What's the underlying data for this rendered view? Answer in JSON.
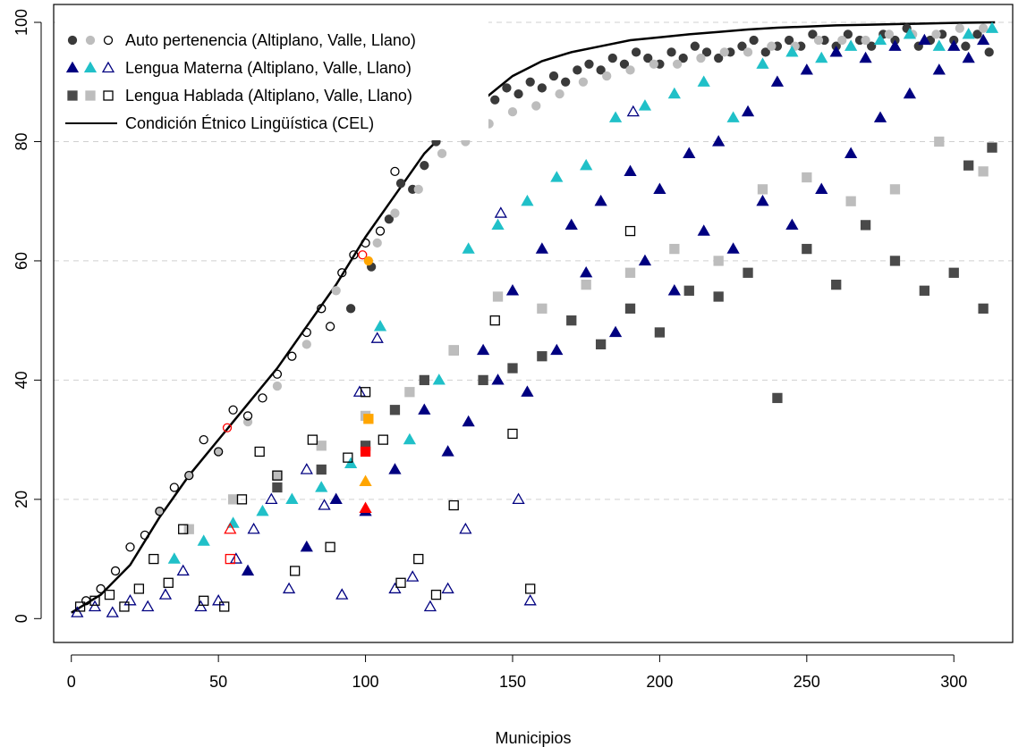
{
  "chart_data": {
    "type": "scatter",
    "title": "",
    "xlabel": "Municipios",
    "ylabel": "",
    "xlim": [
      -6,
      320
    ],
    "ylim": [
      -4,
      103
    ],
    "xticks": [
      0,
      50,
      100,
      150,
      200,
      250,
      300
    ],
    "yticks": [
      0,
      20,
      40,
      60,
      80,
      100
    ],
    "grid": "horizontal dashed at y ticks",
    "legend_position": "top-left",
    "colors": {
      "altiplano_circle": "#3a3a3a",
      "valle_circle": "#bdbdbd",
      "llano_circle": "#000000",
      "altiplano_triangle": "#000080",
      "valle_triangle": "#20c0c8",
      "llano_triangle": "#000080",
      "altiplano_square": "#4a4a4a",
      "valle_square": "#bdbdbd",
      "llano_square": "#000000",
      "cel_line": "#000000",
      "highlight_red": "#ff0000",
      "highlight_orange": "#ffa500"
    },
    "legend": [
      {
        "label": "Auto pertenencia (Altiplano, Valle, Llano)",
        "marker": "circle"
      },
      {
        "label": "Lengua Materna (Altiplano, Valle, Llano)",
        "marker": "triangle"
      },
      {
        "label": "Lengua Hablada (Altiplano, Valle, Llano)",
        "marker": "square"
      },
      {
        "label": "Condición Étnico Lingüística (CEL)",
        "marker": "line"
      }
    ],
    "cel_line": {
      "x": [
        0,
        10,
        20,
        25,
        30,
        40,
        50,
        60,
        70,
        80,
        90,
        100,
        110,
        120,
        130,
        140,
        150,
        160,
        170,
        180,
        190,
        200,
        210,
        220,
        230,
        240,
        250,
        260,
        270,
        280,
        290,
        300,
        314
      ],
      "y": [
        1,
        4,
        9,
        13,
        17,
        24,
        30,
        36,
        42,
        49,
        56,
        64,
        71,
        78,
        83,
        87,
        91,
        93.5,
        95,
        96,
        97,
        97.5,
        98,
        98.4,
        98.8,
        99.1,
        99.3,
        99.5,
        99.6,
        99.7,
        99.8,
        99.9,
        100
      ]
    },
    "series": [
      {
        "group": "Auto pertenencia",
        "region": "Altiplano",
        "marker": "circle-filled",
        "color": "#3a3a3a",
        "x": [
          95,
          102,
          108,
          112,
          116,
          120,
          124,
          128,
          132,
          136,
          140,
          144,
          148,
          152,
          156,
          160,
          164,
          168,
          172,
          176,
          180,
          184,
          188,
          192,
          196,
          200,
          204,
          208,
          212,
          216,
          220,
          224,
          228,
          232,
          236,
          240,
          244,
          248,
          252,
          256,
          260,
          264,
          268,
          272,
          276,
          280,
          284,
          288,
          292,
          296,
          300,
          304,
          308,
          312
        ],
        "y": [
          52,
          59,
          67,
          73,
          72,
          76,
          80,
          82,
          85,
          84,
          86,
          87,
          89,
          88,
          90,
          89,
          91,
          90,
          92,
          93,
          92,
          94,
          93,
          95,
          94,
          93,
          95,
          94,
          96,
          95,
          94,
          95,
          96,
          97,
          95,
          96,
          97,
          96,
          98,
          97,
          96,
          98,
          97,
          96,
          98,
          97,
          99,
          96,
          97,
          98,
          97,
          96,
          98,
          95
        ]
      },
      {
        "group": "Auto pertenencia",
        "region": "Valle",
        "marker": "circle-filled",
        "color": "#bdbdbd",
        "x": [
          30,
          40,
          50,
          60,
          70,
          80,
          90,
          104,
          110,
          118,
          126,
          134,
          142,
          150,
          158,
          166,
          174,
          182,
          190,
          198,
          206,
          214,
          222,
          230,
          238,
          246,
          254,
          262,
          270,
          278,
          286,
          294,
          302,
          310
        ],
        "y": [
          18,
          24,
          28,
          33,
          39,
          46,
          55,
          63,
          68,
          72,
          78,
          80,
          83,
          85,
          86,
          88,
          90,
          91,
          92,
          93,
          93,
          94,
          95,
          95,
          96,
          96,
          97,
          97,
          97,
          98,
          98,
          98,
          99,
          99
        ]
      },
      {
        "group": "Auto pertenencia",
        "region": "Llano",
        "marker": "circle-open",
        "color": "#000000",
        "x": [
          5,
          10,
          15,
          20,
          25,
          30,
          35,
          40,
          45,
          50,
          55,
          60,
          65,
          70,
          75,
          80,
          85,
          88,
          92,
          96,
          100,
          105,
          110
        ],
        "y": [
          3,
          5,
          8,
          12,
          14,
          18,
          22,
          24,
          30,
          28,
          35,
          34,
          37,
          41,
          44,
          48,
          52,
          49,
          58,
          61,
          63,
          65,
          75
        ]
      },
      {
        "group": "Lengua Materna",
        "region": "Altiplano",
        "marker": "triangle-filled",
        "color": "#000080",
        "x": [
          60,
          80,
          90,
          100,
          110,
          120,
          128,
          135,
          140,
          145,
          150,
          155,
          160,
          165,
          170,
          175,
          180,
          185,
          190,
          195,
          200,
          205,
          210,
          215,
          220,
          225,
          230,
          235,
          240,
          245,
          250,
          255,
          260,
          265,
          270,
          275,
          280,
          285,
          290,
          295,
          300,
          305,
          310
        ],
        "y": [
          8,
          12,
          20,
          18,
          25,
          35,
          28,
          33,
          45,
          40,
          55,
          38,
          62,
          45,
          66,
          58,
          70,
          48,
          75,
          60,
          72,
          55,
          78,
          65,
          80,
          62,
          85,
          70,
          90,
          66,
          92,
          72,
          95,
          78,
          94,
          84,
          96,
          88,
          97,
          92,
          96,
          94,
          97
        ]
      },
      {
        "group": "Lengua Materna",
        "region": "Valle",
        "marker": "triangle-filled",
        "color": "#20c0c8",
        "x": [
          35,
          45,
          55,
          65,
          75,
          85,
          95,
          105,
          115,
          125,
          135,
          145,
          155,
          165,
          175,
          185,
          195,
          205,
          215,
          225,
          235,
          245,
          255,
          265,
          275,
          285,
          295,
          305,
          313
        ],
        "y": [
          10,
          13,
          16,
          18,
          20,
          22,
          26,
          49,
          30,
          40,
          62,
          66,
          70,
          74,
          76,
          84,
          86,
          88,
          90,
          84,
          93,
          95,
          94,
          96,
          97,
          98,
          96,
          98,
          99
        ]
      },
      {
        "group": "Lengua Materna",
        "region": "Llano",
        "marker": "triangle-open",
        "color": "#000080",
        "x": [
          2,
          8,
          14,
          20,
          26,
          32,
          38,
          44,
          50,
          56,
          62,
          68,
          74,
          80,
          86,
          92,
          98,
          104,
          110,
          116,
          122,
          128,
          134,
          146,
          152,
          156,
          191
        ],
        "y": [
          1,
          2,
          1,
          3,
          2,
          4,
          8,
          2,
          3,
          10,
          15,
          20,
          5,
          25,
          19,
          4,
          38,
          47,
          5,
          7,
          2,
          5,
          15,
          68,
          20,
          3,
          85
        ]
      },
      {
        "group": "Lengua Hablada",
        "region": "Altiplano",
        "marker": "square-filled",
        "color": "#4a4a4a",
        "x": [
          70,
          85,
          100,
          110,
          120,
          130,
          140,
          150,
          160,
          170,
          180,
          190,
          200,
          210,
          220,
          230,
          240,
          250,
          260,
          270,
          280,
          290,
          300,
          305,
          310,
          313
        ],
        "y": [
          22,
          25,
          29,
          35,
          40,
          45,
          40,
          42,
          44,
          50,
          46,
          52,
          48,
          55,
          54,
          58,
          37,
          62,
          56,
          66,
          60,
          55,
          58,
          76,
          52,
          79
        ]
      },
      {
        "group": "Lengua Hablada",
        "region": "Valle",
        "marker": "square-filled",
        "color": "#bdbdbd",
        "x": [
          40,
          55,
          70,
          85,
          100,
          115,
          130,
          145,
          160,
          175,
          190,
          205,
          220,
          235,
          250,
          265,
          280,
          295,
          310
        ],
        "y": [
          15,
          20,
          24,
          29,
          34,
          38,
          45,
          54,
          52,
          56,
          58,
          62,
          60,
          72,
          74,
          70,
          72,
          80,
          75
        ]
      },
      {
        "group": "Lengua Hablada",
        "region": "Llano",
        "marker": "square-open",
        "color": "#000000",
        "x": [
          3,
          8,
          13,
          18,
          23,
          28,
          33,
          38,
          45,
          52,
          58,
          64,
          70,
          76,
          82,
          88,
          94,
          100,
          106,
          112,
          118,
          124,
          130,
          144,
          150,
          156,
          190
        ],
        "y": [
          2,
          3,
          4,
          2,
          5,
          10,
          6,
          15,
          3,
          2,
          20,
          28,
          24,
          8,
          30,
          12,
          27,
          38,
          30,
          6,
          10,
          4,
          19,
          50,
          31,
          5,
          65
        ]
      },
      {
        "group": "highlight",
        "region": "",
        "marker": "circle-open",
        "color": "#ff0000",
        "x": [
          53,
          99
        ],
        "y": [
          32,
          61
        ]
      },
      {
        "group": "highlight",
        "region": "",
        "marker": "triangle-open",
        "color": "#ff0000",
        "x": [
          54
        ],
        "y": [
          15
        ]
      },
      {
        "group": "highlight",
        "region": "",
        "marker": "square-open",
        "color": "#ff0000",
        "x": [
          54
        ],
        "y": [
          10
        ]
      },
      {
        "group": "highlight",
        "region": "",
        "marker": "triangle-filled",
        "color": "#ff0000",
        "x": [
          100
        ],
        "y": [
          18.5
        ]
      },
      {
        "group": "highlight",
        "region": "",
        "marker": "square-filled",
        "color": "#ff0000",
        "x": [
          100
        ],
        "y": [
          28
        ]
      },
      {
        "group": "highlight",
        "region": "",
        "marker": "circle-filled",
        "color": "#ffa500",
        "x": [
          101
        ],
        "y": [
          60
        ]
      },
      {
        "group": "highlight",
        "region": "",
        "marker": "triangle-filled",
        "color": "#ffa500",
        "x": [
          100
        ],
        "y": [
          23
        ]
      },
      {
        "group": "highlight",
        "region": "",
        "marker": "square-filled",
        "color": "#ffa500",
        "x": [
          101
        ],
        "y": [
          33.5
        ]
      }
    ]
  }
}
